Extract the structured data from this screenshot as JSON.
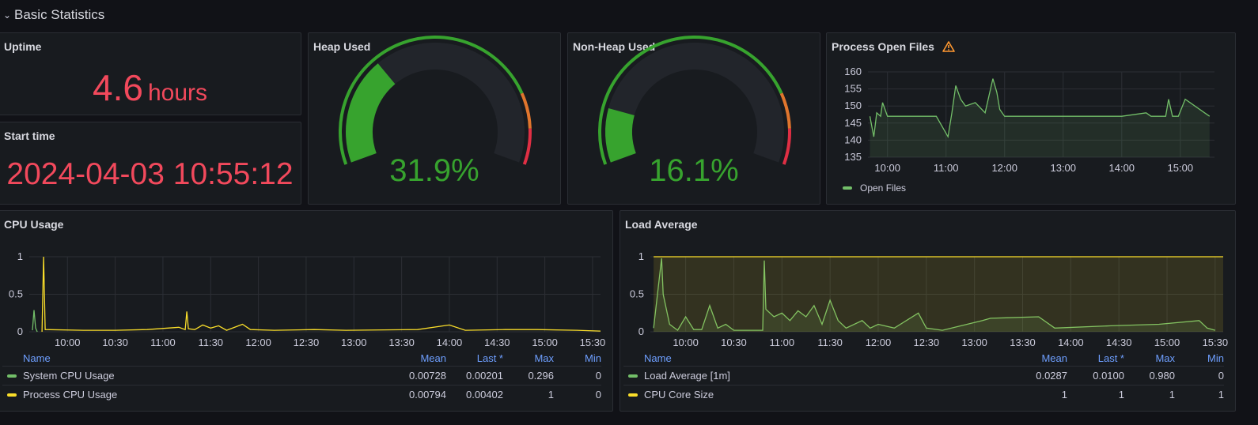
{
  "row": {
    "title": "Basic Statistics",
    "chevron": "chevron-down-icon"
  },
  "panels": {
    "uptime": {
      "title": "Uptime",
      "value": "4.6",
      "unit": "hours"
    },
    "start_time": {
      "title": "Start time",
      "value": "2024-04-03 10:55:12"
    },
    "heap": {
      "title": "Heap Used",
      "value": "31.9%",
      "percent": 31.9
    },
    "nonheap": {
      "title": "Non-Heap Used",
      "value": "16.1%",
      "percent": 16.1
    },
    "open_files": {
      "title": "Process Open Files",
      "warning_icon": "warning-icon",
      "legend": "Open Files",
      "color": "#73bf69"
    },
    "cpu": {
      "title": "CPU Usage",
      "legend_headers": [
        "Name",
        "Mean",
        "Last *",
        "Max",
        "Min"
      ],
      "rows": [
        {
          "name": "System CPU Usage",
          "color": "#73bf69",
          "mean": "0.00728",
          "last": "0.00201",
          "max": "0.296",
          "min": "0"
        },
        {
          "name": "Process CPU Usage",
          "color": "#fade2a",
          "mean": "0.00794",
          "last": "0.00402",
          "max": "1",
          "min": "0"
        }
      ]
    },
    "load": {
      "title": "Load Average",
      "legend_headers": [
        "Name",
        "Mean",
        "Last *",
        "Max",
        "Min"
      ],
      "rows": [
        {
          "name": "Load Average [1m]",
          "color": "#73bf69",
          "mean": "0.0287",
          "last": "0.0100",
          "max": "0.980",
          "min": "0"
        },
        {
          "name": "CPU Core Size",
          "color": "#fade2a",
          "mean": "1",
          "last": "1",
          "max": "1",
          "min": "1"
        }
      ]
    }
  },
  "colors": {
    "stat_red": "#f2495c",
    "gauge_green": "#37a32e",
    "gauge_orange": "#e0752d",
    "gauge_red": "#e02f44",
    "accent_blue": "#6e9fff"
  },
  "chart_data": [
    {
      "type": "line",
      "title": "Process Open Files",
      "x_ticks": [
        "10:00",
        "11:00",
        "12:00",
        "13:00",
        "14:00",
        "15:00"
      ],
      "y_ticks": [
        "135",
        "140",
        "145",
        "150",
        "155",
        "160"
      ],
      "ylim": [
        135,
        160
      ],
      "series": [
        {
          "name": "Open Files",
          "x": [
            "09:42",
            "09:46",
            "09:49",
            "09:53",
            "09:55",
            "10:00",
            "10:50",
            "11:02",
            "11:06",
            "11:10",
            "11:15",
            "11:20",
            "11:30",
            "11:40",
            "11:48",
            "11:52",
            "11:55",
            "12:00",
            "12:30",
            "13:00",
            "13:30",
            "14:00",
            "14:25",
            "14:30",
            "14:45",
            "14:48",
            "14:52",
            "14:58",
            "15:05",
            "15:30"
          ],
          "values": [
            147,
            141,
            148,
            147,
            151,
            147,
            147,
            141,
            148,
            156,
            152,
            150,
            151,
            148,
            158,
            154,
            149,
            147,
            147,
            147,
            147,
            147,
            148,
            147,
            147,
            152,
            147,
            147,
            152,
            147
          ]
        }
      ]
    },
    {
      "type": "line",
      "title": "CPU Usage",
      "x_ticks": [
        "10:00",
        "10:30",
        "11:00",
        "11:30",
        "12:00",
        "12:30",
        "13:00",
        "13:30",
        "14:00",
        "14:30",
        "15:00",
        "15:30"
      ],
      "y_ticks": [
        "0",
        "0.5",
        "1"
      ],
      "ylim": [
        0,
        1
      ],
      "series": [
        {
          "name": "System CPU Usage",
          "x": [
            "09:38",
            "09:39",
            "09:40",
            "09:41"
          ],
          "values": [
            0.02,
            0.29,
            0.05,
            0.0
          ]
        },
        {
          "name": "Process CPU Usage",
          "x": [
            "09:44",
            "09:45",
            "09:46",
            "10:10",
            "10:30",
            "10:50",
            "11:10",
            "11:14",
            "11:15",
            "11:16",
            "11:20",
            "11:25",
            "11:30",
            "11:35",
            "11:40",
            "11:50",
            "11:55",
            "12:10",
            "12:35",
            "12:55",
            "13:40",
            "14:00",
            "14:10",
            "14:35",
            "14:55",
            "15:20",
            "15:35"
          ],
          "values": [
            0.0,
            1,
            0.03,
            0.02,
            0.02,
            0.03,
            0.06,
            0.03,
            0.27,
            0.04,
            0.03,
            0.09,
            0.05,
            0.08,
            0.02,
            0.1,
            0.03,
            0.02,
            0.03,
            0.02,
            0.03,
            0.09,
            0.02,
            0.03,
            0.03,
            0.02,
            0.01
          ]
        }
      ]
    },
    {
      "type": "area",
      "title": "Load Average",
      "x_ticks": [
        "10:00",
        "10:30",
        "11:00",
        "11:30",
        "12:00",
        "12:30",
        "13:00",
        "13:30",
        "14:00",
        "14:30",
        "15:00",
        "15:30"
      ],
      "y_ticks": [
        "0",
        "0.5",
        "1"
      ],
      "ylim": [
        0,
        1
      ],
      "series": [
        {
          "name": "Load Average [1m]",
          "x": [
            "09:40",
            "09:45",
            "09:46",
            "09:50",
            "09:55",
            "10:00",
            "10:05",
            "10:10",
            "10:15",
            "10:20",
            "10:25",
            "10:30",
            "10:48",
            "10:49",
            "10:50",
            "10:55",
            "11:00",
            "11:05",
            "11:10",
            "11:15",
            "11:20",
            "11:25",
            "11:30",
            "11:35",
            "11:40",
            "11:50",
            "11:55",
            "12:00",
            "12:10",
            "12:25",
            "12:30",
            "12:40",
            "13:05",
            "13:10",
            "13:40",
            "13:50",
            "14:25",
            "14:55",
            "15:20",
            "15:25",
            "15:30"
          ],
          "values": [
            0.05,
            0.98,
            0.5,
            0.1,
            0.02,
            0.2,
            0.03,
            0.03,
            0.35,
            0.05,
            0.1,
            0.02,
            0.02,
            0.95,
            0.3,
            0.2,
            0.25,
            0.15,
            0.28,
            0.2,
            0.35,
            0.1,
            0.42,
            0.15,
            0.05,
            0.15,
            0.05,
            0.1,
            0.05,
            0.25,
            0.05,
            0.02,
            0.15,
            0.18,
            0.2,
            0.05,
            0.08,
            0.1,
            0.15,
            0.05,
            0.02
          ]
        },
        {
          "name": "CPU Core Size",
          "x": [
            "09:40",
            "15:35"
          ],
          "values": [
            1,
            1
          ]
        }
      ]
    }
  ]
}
